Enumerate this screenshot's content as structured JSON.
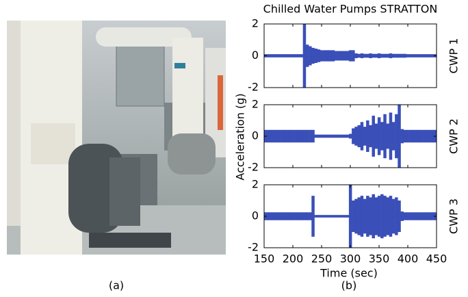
{
  "figure": {
    "title": "Chilled Water Pumps STRATTON",
    "x_label": "Time (sec)",
    "y_label": "Acceleration (g)",
    "caption_a": "(a)",
    "caption_b": "(b)"
  },
  "chart_data": [
    {
      "type": "envelope",
      "label": "CWP 1",
      "color": "#3a4fb8",
      "x": [
        150,
        155,
        160,
        165,
        170,
        175,
        180,
        185,
        190,
        195,
        200,
        205,
        210,
        215,
        220,
        225,
        230,
        235,
        240,
        245,
        250,
        255,
        260,
        265,
        270,
        275,
        280,
        285,
        290,
        295,
        300,
        305,
        310,
        315,
        320,
        325,
        330,
        335,
        340,
        345,
        350,
        355,
        360,
        365,
        370,
        375,
        380,
        385,
        390,
        395,
        400,
        405,
        410,
        415,
        420,
        425,
        430,
        435,
        440,
        445,
        450
      ],
      "values": [
        0.1,
        0.1,
        0.1,
        0.1,
        0.1,
        0.1,
        0.1,
        0.1,
        0.1,
        0.1,
        0.1,
        0.1,
        0.1,
        0.1,
        2,
        0.7,
        0.6,
        0.5,
        0.45,
        0.4,
        0.35,
        0.35,
        0.35,
        0.35,
        0.35,
        0.3,
        0.3,
        0.3,
        0.3,
        0.3,
        0.35,
        0.35,
        0.15,
        0.12,
        0.15,
        0.12,
        0.12,
        0.15,
        0.12,
        0.12,
        0.15,
        0.12,
        0.12,
        0.12,
        0.15,
        0.12,
        0.12,
        0.12,
        0.12,
        0.12,
        0.1,
        0.1,
        0.1,
        0.1,
        0.1,
        0.1,
        0.1,
        0.1,
        0.1,
        0.1,
        0.1
      ],
      "xlim": [
        150,
        450
      ],
      "xticks": [
        150,
        200,
        250,
        300,
        350,
        400,
        450
      ],
      "ylim": [
        -2,
        2
      ],
      "yticks": [
        -2,
        0,
        2
      ],
      "show_xtick_labels": false
    },
    {
      "type": "envelope",
      "label": "CWP 2",
      "color": "#3a4fb8",
      "x": [
        150,
        155,
        160,
        165,
        170,
        175,
        180,
        185,
        190,
        195,
        200,
        205,
        210,
        215,
        220,
        225,
        230,
        235,
        240,
        245,
        250,
        255,
        260,
        265,
        270,
        275,
        280,
        285,
        290,
        295,
        300,
        305,
        310,
        315,
        320,
        325,
        330,
        335,
        340,
        345,
        350,
        355,
        360,
        365,
        370,
        375,
        380,
        385,
        390,
        395,
        400,
        405,
        410,
        415,
        420,
        425,
        430,
        435,
        440,
        445,
        450
      ],
      "values": [
        0.4,
        0.4,
        0.4,
        0.4,
        0.4,
        0.4,
        0.4,
        0.4,
        0.4,
        0.4,
        0.4,
        0.4,
        0.4,
        0.4,
        0.4,
        0.4,
        0.4,
        0.4,
        0.1,
        0.1,
        0.1,
        0.1,
        0.1,
        0.1,
        0.1,
        0.1,
        0.1,
        0.1,
        0.1,
        0.1,
        0.15,
        0.5,
        0.6,
        0.7,
        0.9,
        0.6,
        1.0,
        0.7,
        1.3,
        0.8,
        1.2,
        0.9,
        1.4,
        0.8,
        1.5,
        0.9,
        1.4,
        2,
        0.45,
        0.4,
        0.4,
        0.4,
        0.4,
        0.4,
        0.4,
        0.4,
        0.4,
        0.4,
        0.4,
        0.4,
        0.4
      ],
      "xlim": [
        150,
        450
      ],
      "xticks": [
        150,
        200,
        250,
        300,
        350,
        400,
        450
      ],
      "ylim": [
        -2,
        2
      ],
      "yticks": [
        -2,
        0,
        2
      ],
      "show_xtick_labels": false
    },
    {
      "type": "envelope",
      "label": "CWP 3",
      "color": "#3a4fb8",
      "x": [
        150,
        155,
        160,
        165,
        170,
        175,
        180,
        185,
        190,
        195,
        200,
        205,
        210,
        215,
        220,
        225,
        230,
        235,
        240,
        245,
        250,
        255,
        260,
        265,
        270,
        275,
        280,
        285,
        290,
        295,
        300,
        305,
        310,
        315,
        320,
        325,
        330,
        335,
        340,
        345,
        350,
        355,
        360,
        365,
        370,
        375,
        380,
        385,
        390,
        395,
        400,
        405,
        410,
        415,
        420,
        425,
        430,
        435,
        440,
        445,
        450
      ],
      "values": [
        0.25,
        0.25,
        0.25,
        0.25,
        0.25,
        0.25,
        0.25,
        0.25,
        0.25,
        0.25,
        0.25,
        0.25,
        0.25,
        0.25,
        0.25,
        0.25,
        0.25,
        1.3,
        0.08,
        0.08,
        0.08,
        0.08,
        0.08,
        0.08,
        0.08,
        0.08,
        0.08,
        0.08,
        0.08,
        0.08,
        2,
        1.0,
        1.1,
        1.2,
        1.3,
        1.1,
        1.3,
        1.2,
        1.4,
        1.2,
        1.3,
        1.4,
        1.3,
        1.2,
        1.3,
        1.1,
        1.2,
        1.0,
        0.3,
        0.25,
        0.25,
        0.25,
        0.25,
        0.25,
        0.25,
        0.25,
        0.25,
        0.25,
        0.25,
        0.25,
        0.25
      ],
      "xlim": [
        150,
        450
      ],
      "xticks": [
        150,
        200,
        250,
        300,
        350,
        400,
        450
      ],
      "ylim": [
        -2,
        2
      ],
      "yticks": [
        -2,
        0,
        2
      ],
      "show_xtick_labels": true
    }
  ]
}
